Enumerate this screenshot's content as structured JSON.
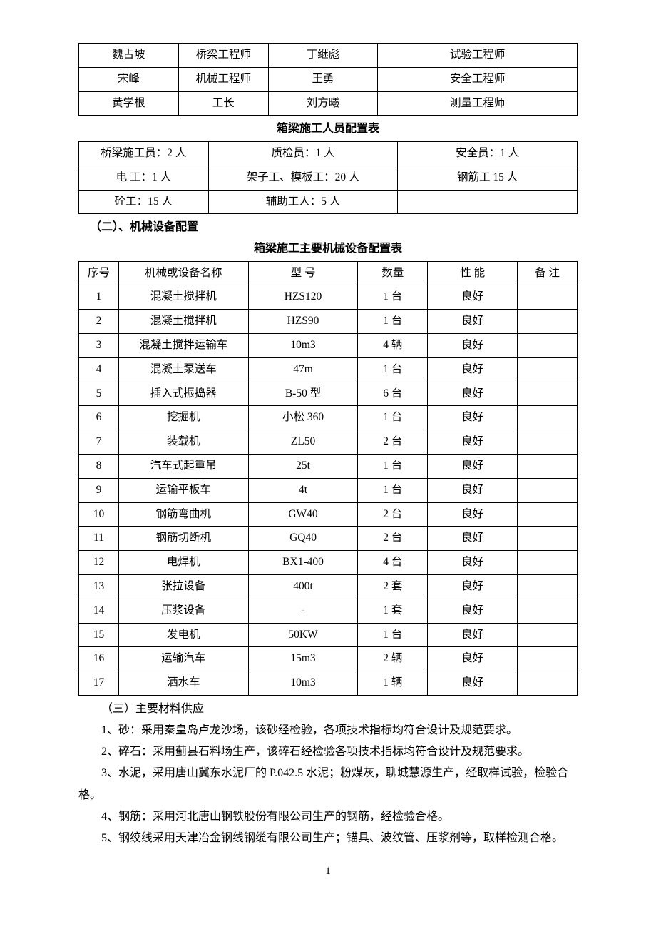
{
  "table1": {
    "rows": [
      [
        "魏占坡",
        "桥梁工程师",
        "丁继彪",
        "试验工程师"
      ],
      [
        "宋峰",
        "机械工程师",
        "王勇",
        "安全工程师"
      ],
      [
        "黄学根",
        "工长",
        "刘方曦",
        "测量工程师"
      ]
    ]
  },
  "table2": {
    "caption": "箱梁施工人员配置表",
    "rows": [
      [
        "桥梁施工员：2 人",
        "质检员：1 人",
        "安全员：1 人"
      ],
      [
        "电 工：1 人",
        "架子工、模板工：20 人",
        "钢筋工 15 人"
      ],
      [
        "砼工：15 人",
        "辅助工人：5 人",
        ""
      ]
    ]
  },
  "section2": "（二）、机械设备配置",
  "table3": {
    "caption": "箱梁施工主要机械设备配置表",
    "headers": [
      "序号",
      "机械或设备名称",
      "型 号",
      "数量",
      "性 能",
      "备 注"
    ],
    "rows": [
      [
        "1",
        "混凝土搅拌机",
        "HZS120",
        "1 台",
        "良好",
        ""
      ],
      [
        "2",
        "混凝土搅拌机",
        "HZS90",
        "1 台",
        "良好",
        ""
      ],
      [
        "3",
        "混凝土搅拌运输车",
        "10m3",
        "4 辆",
        "良好",
        ""
      ],
      [
        "4",
        "混凝土泵送车",
        "47m",
        "1 台",
        "良好",
        ""
      ],
      [
        "5",
        "插入式振捣器",
        "B-50 型",
        "6 台",
        "良好",
        ""
      ],
      [
        "6",
        "挖掘机",
        "小松 360",
        "1 台",
        "良好",
        ""
      ],
      [
        "7",
        "装载机",
        "ZL50",
        "2 台",
        "良好",
        ""
      ],
      [
        "8",
        "汽车式起重吊",
        "25t",
        "1 台",
        "良好",
        ""
      ],
      [
        "9",
        "运输平板车",
        "4t",
        "1 台",
        "良好",
        ""
      ],
      [
        "10",
        "钢筋弯曲机",
        "GW40",
        "2 台",
        "良好",
        ""
      ],
      [
        "11",
        "钢筋切断机",
        "GQ40",
        "2 台",
        "良好",
        ""
      ],
      [
        "12",
        "电焊机",
        "BX1-400",
        "4 台",
        "良好",
        ""
      ],
      [
        "13",
        "张拉设备",
        "400t",
        "2 套",
        "良好",
        ""
      ],
      [
        "14",
        "压浆设备",
        "-",
        "1 套",
        "良好",
        ""
      ],
      [
        "15",
        "发电机",
        "50KW",
        "1 台",
        "良好",
        ""
      ],
      [
        "16",
        "运输汽车",
        "15m3",
        "2 辆",
        "良好",
        ""
      ],
      [
        "17",
        "洒水车",
        "10m3",
        "1 辆",
        "良好",
        ""
      ]
    ]
  },
  "section3": "（三）主要材料供应",
  "paragraphs": [
    "1、砂：采用秦皇岛卢龙沙场，该砂经检验，各项技术指标均符合设计及规范要求。",
    "2、碎石：采用蓟县石料场生产，该碎石经检验各项技术指标均符合设计及规范要求。",
    "3、水泥，采用唐山冀东水泥厂的 P.042.5 水泥；粉煤灰，聊城慧源生产，经取样试验，检验合格。",
    "4、钢筋：采用河北唐山钢铁股份有限公司生产的钢筋，经检验合格。",
    "5、钢绞线采用天津冶金钢线钢缆有限公司生产；锚具、波纹管、压浆剂等，取样检测合格。"
  ],
  "page_number": "1"
}
